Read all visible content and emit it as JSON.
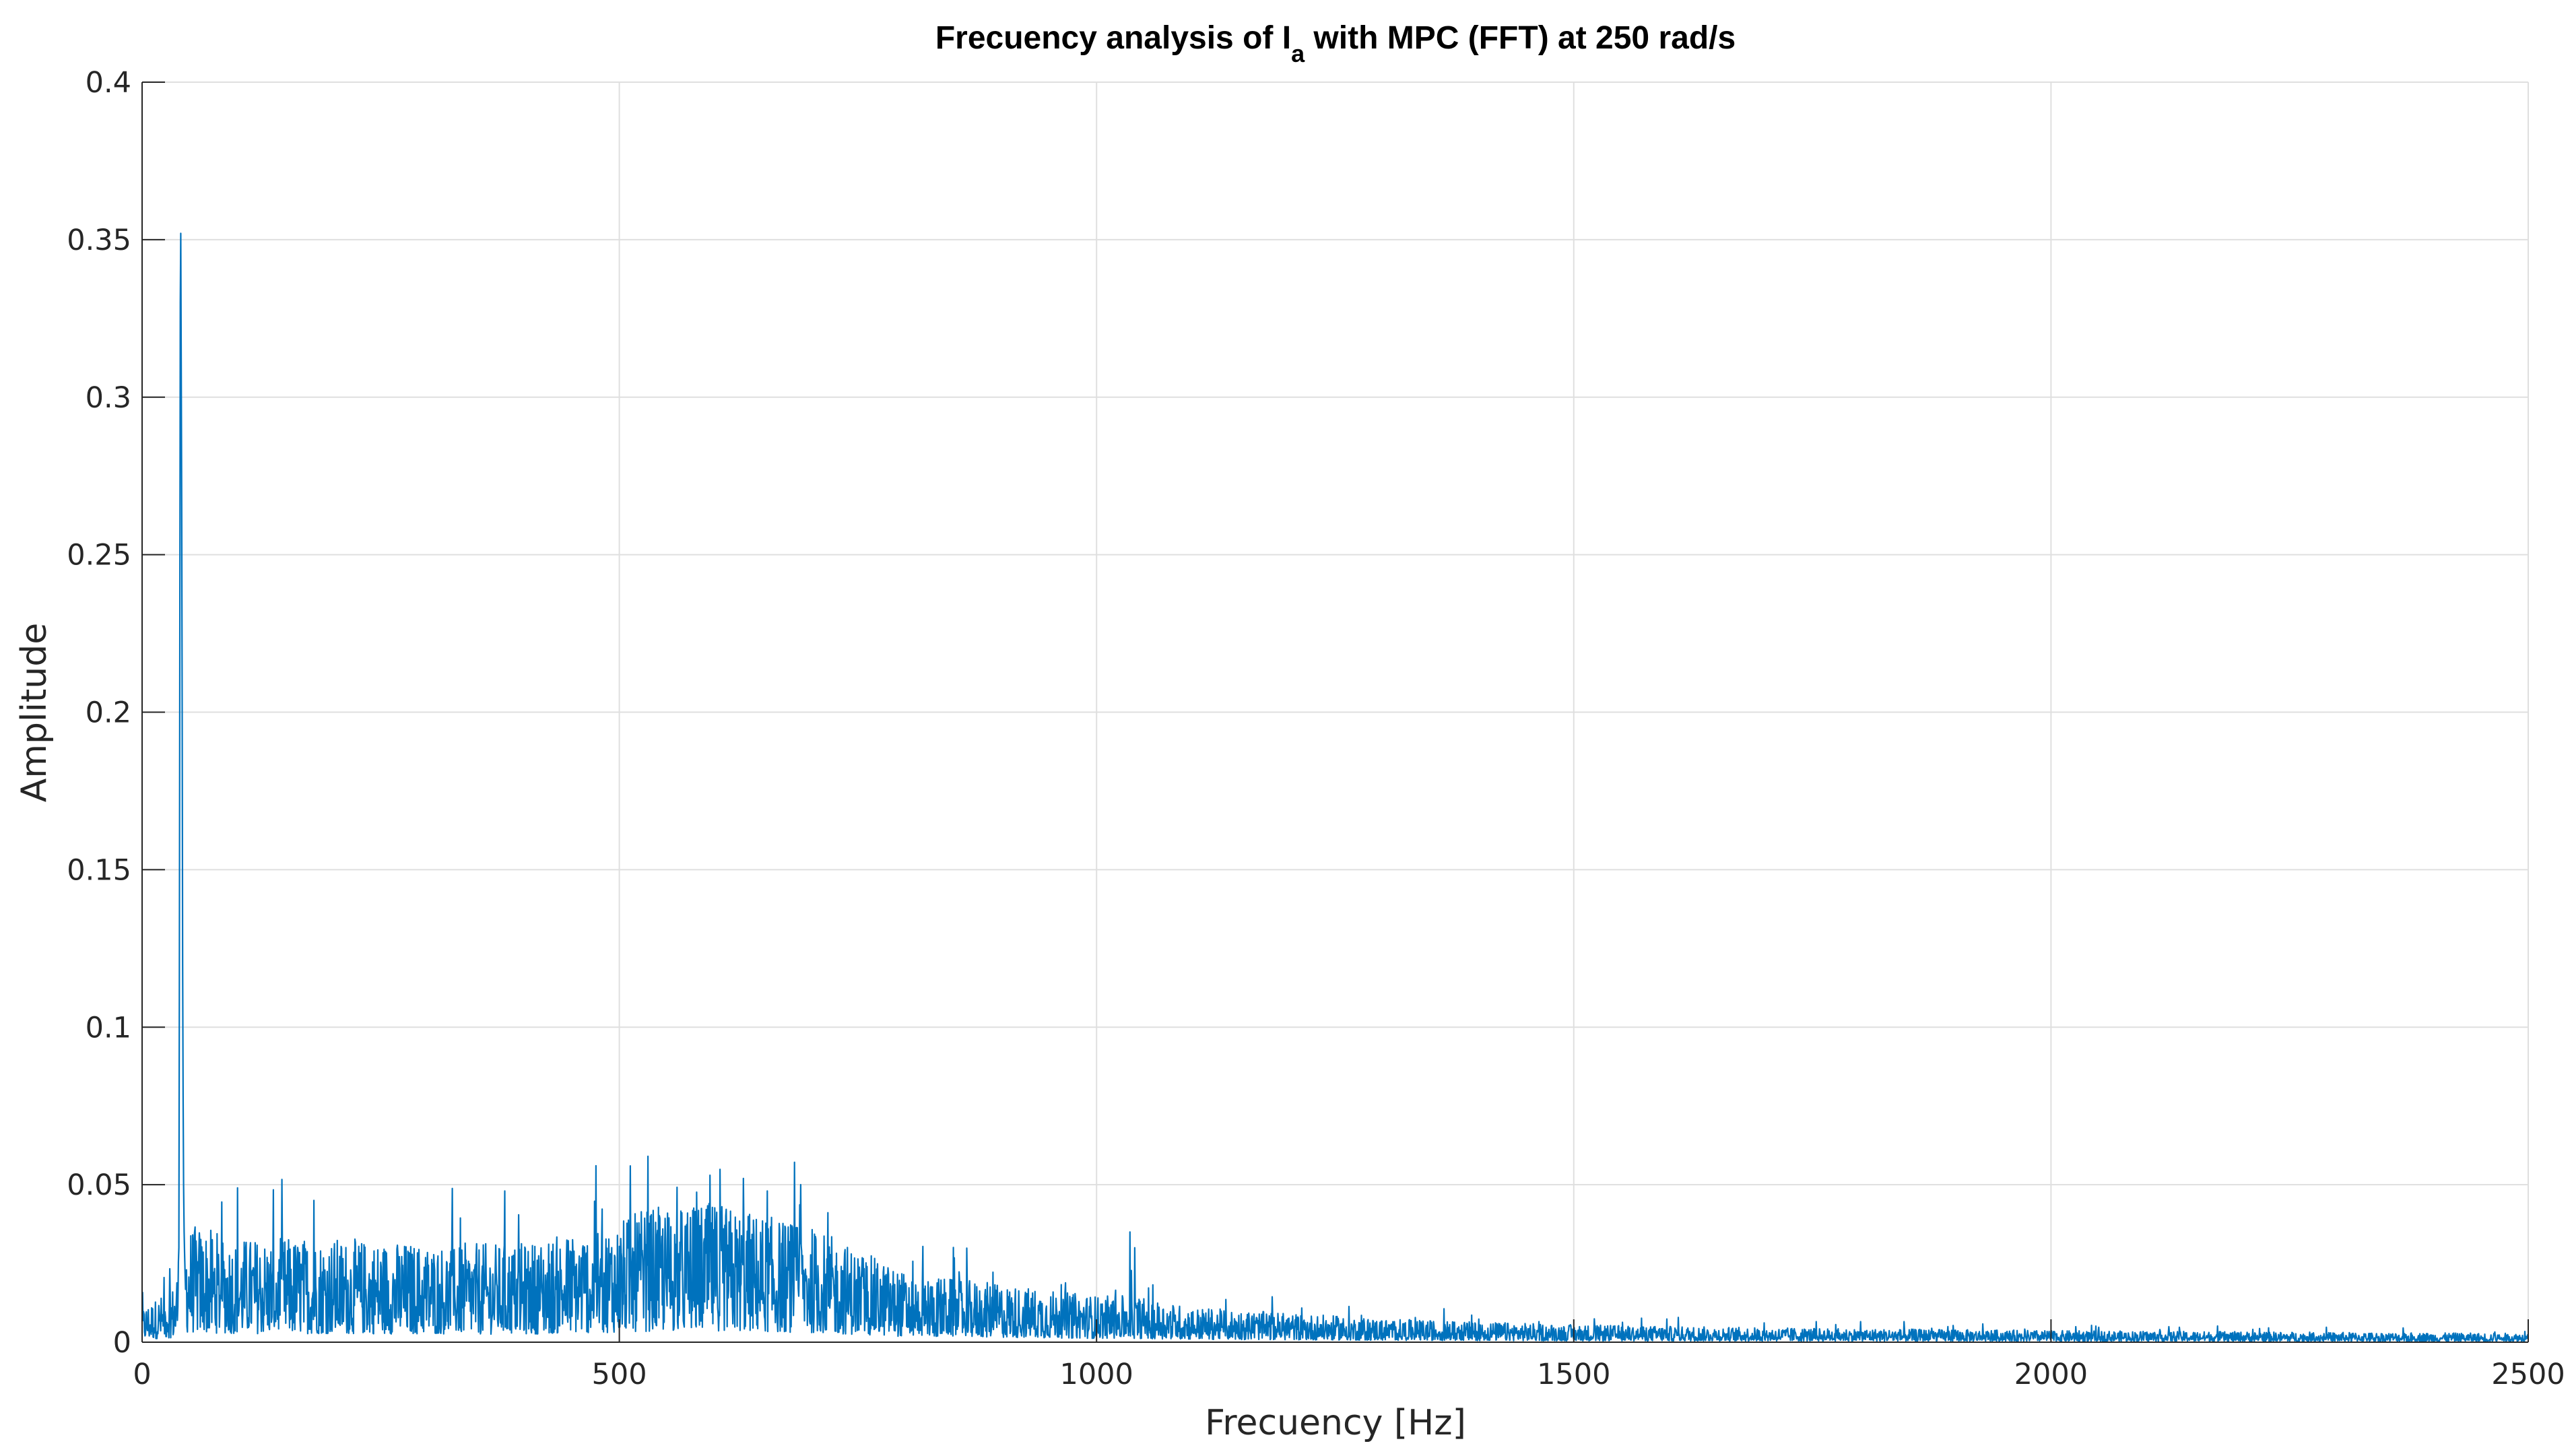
{
  "chart_data": {
    "type": "line",
    "title": {
      "before": "Frecuency analysis of I",
      "subscript": "a",
      "after": " with MPC (FFT) at 250 rad/s"
    },
    "xlabel": "Frecuency [Hz]",
    "ylabel": "Amplitude",
    "xlim": [
      0,
      2500
    ],
    "ylim": [
      0,
      0.4
    ],
    "xticks": [
      0,
      500,
      1000,
      1500,
      2000,
      2500
    ],
    "xtick_labels": [
      "0",
      "500",
      "1000",
      "1500",
      "2000",
      "2500"
    ],
    "yticks": [
      0,
      0.05,
      0.1,
      0.15,
      0.2,
      0.25,
      0.3,
      0.35,
      0.4
    ],
    "ytick_labels": [
      "0",
      "0.05",
      "0.1",
      "0.15",
      "0.2",
      "0.25",
      "0.3",
      "0.35",
      "0.4"
    ],
    "grid": true,
    "line_color": "#0072BD",
    "series": [
      {
        "envelope": {
          "x": [
            0,
            20,
            35,
            40,
            45,
            60,
            100,
            200,
            300,
            400,
            500,
            530,
            600,
            650,
            700,
            750,
            800,
            900,
            1000,
            1040,
            1100,
            1200,
            1300,
            1500,
            1700,
            2000,
            2200,
            2500
          ],
          "y": [
            0.006,
            0.008,
            0.01,
            0.02,
            0.02,
            0.02,
            0.018,
            0.018,
            0.017,
            0.017,
            0.021,
            0.023,
            0.024,
            0.022,
            0.02,
            0.016,
            0.012,
            0.01,
            0.008,
            0.008,
            0.006,
            0.005,
            0.004,
            0.003,
            0.0025,
            0.002,
            0.0018,
            0.0015
          ]
        },
        "peaks": {
          "x": [
            38.5,
            39.0,
            39.5,
            40.0,
            40.5,
            41.0,
            41.5,
            42.0,
            42.5,
            43.0,
            43.5,
            44.0,
            44.5,
            45.0,
            530,
            595,
            630,
            655,
            690,
            380,
            100,
            180,
            1035,
            1040
          ],
          "y": [
            0.03,
            0.11,
            0.22,
            0.33,
            0.352,
            0.31,
            0.266,
            0.2,
            0.12,
            0.078,
            0.05,
            0.035,
            0.028,
            0.022,
            0.059,
            0.053,
            0.052,
            0.048,
            0.05,
            0.048,
            0.049,
            0.045,
            0.035,
            0.03
          ]
        }
      }
    ]
  }
}
